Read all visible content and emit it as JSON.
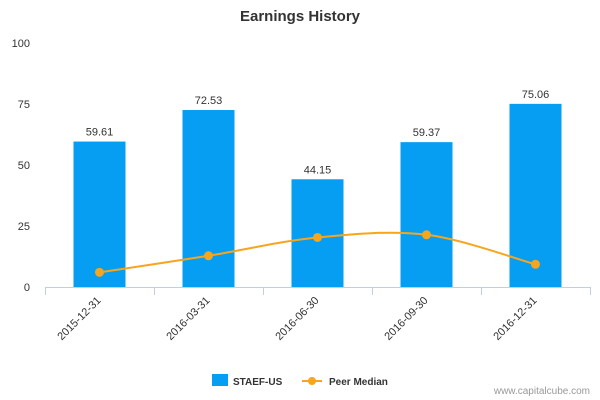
{
  "chart_data": {
    "type": "bar",
    "title": "Earnings History",
    "categories": [
      "2015-12-31",
      "2016-03-31",
      "2016-06-30",
      "2016-09-30",
      "2016-12-31"
    ],
    "series": [
      {
        "name": "STAEF-US",
        "type": "bar",
        "values": [
          59.61,
          72.53,
          44.15,
          59.37,
          75.06
        ],
        "labels": [
          "59.61",
          "72.53",
          "44.15",
          "59.37",
          "75.06"
        ],
        "color": "#069ef2"
      },
      {
        "name": "Peer Median",
        "type": "line",
        "values": [
          6.0,
          12.8,
          20.3,
          21.4,
          9.3
        ],
        "color": "#f7a51d"
      }
    ],
    "ylim": [
      0,
      100
    ],
    "yticks": [
      "0",
      "25",
      "50",
      "75",
      "100"
    ],
    "xlabel": "",
    "ylabel": "",
    "grid": false,
    "legend_position": "bottom-center"
  },
  "credit": "www.capitalcube.com"
}
